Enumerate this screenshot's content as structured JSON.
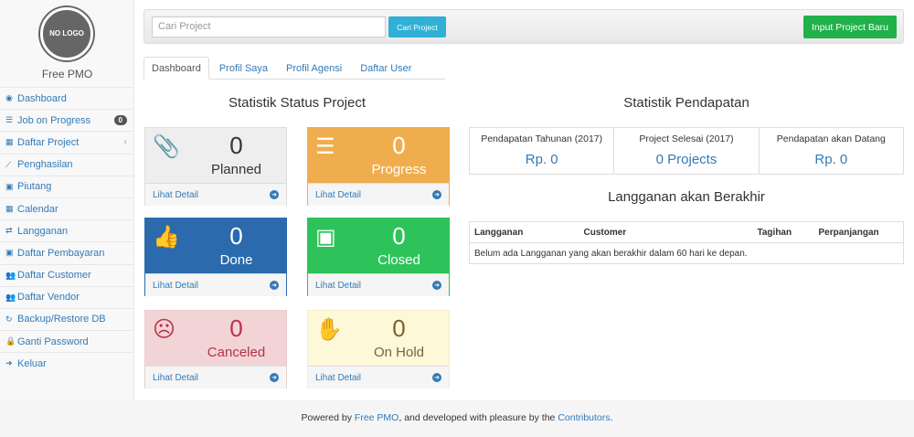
{
  "sidebar": {
    "logo": "NO LOGO",
    "brand": "Free PMO",
    "items": [
      {
        "label": "Dashboard",
        "icon": "dashboard-icon"
      },
      {
        "label": "Job on Progress",
        "icon": "tasks-icon",
        "badge": "0"
      },
      {
        "label": "Daftar Project",
        "icon": "table-icon"
      },
      {
        "label": "Penghasilan",
        "icon": "line-chart-icon"
      },
      {
        "label": "Piutang",
        "icon": "money-icon"
      },
      {
        "label": "Calendar",
        "icon": "calendar-icon"
      },
      {
        "label": "Langganan",
        "icon": "retweet-icon"
      },
      {
        "label": "Daftar Pembayaran",
        "icon": "money-icon"
      },
      {
        "label": "Daftar Customer",
        "icon": "users-icon"
      },
      {
        "label": "Daftar Vendor",
        "icon": "users-icon"
      },
      {
        "label": "Backup/Restore DB",
        "icon": "refresh-icon"
      },
      {
        "label": "Ganti Password",
        "icon": "lock-icon"
      },
      {
        "label": "Keluar",
        "icon": "sign-out-icon"
      }
    ]
  },
  "topbar": {
    "search_placeholder": "Cari Project",
    "search_button": "Cari Project",
    "new_button": "Input Project Baru"
  },
  "tabs": [
    "Dashboard",
    "Profil Saya",
    "Profil Agensi",
    "Daftar User"
  ],
  "status": {
    "title": "Statistik Status Project",
    "detail": "Lihat Detail",
    "panels": [
      {
        "count": "0",
        "label": "Planned",
        "icon": "paperclip-icon",
        "bg": "#eeeeee",
        "fg": "#333333",
        "border": "#dddddd"
      },
      {
        "count": "0",
        "label": "Progress",
        "icon": "tasks-icon",
        "bg": "#f0ad4e",
        "fg": "#ffffff",
        "border": "#f0ad4e"
      },
      {
        "count": "0",
        "label": "Done",
        "icon": "thumbs-up-icon",
        "bg": "#2a6aad",
        "fg": "#ffffff",
        "border": "#2a6aad"
      },
      {
        "count": "0",
        "label": "Closed",
        "icon": "money-icon",
        "bg": "#2ec35a",
        "fg": "#ffffff",
        "border": "#2ec35a"
      },
      {
        "count": "0",
        "label": "Canceled",
        "icon": "frown-icon",
        "bg": "#f2d4d6",
        "fg": "#b9314a",
        "border": "#ebcccc"
      },
      {
        "count": "0",
        "label": "On Hold",
        "icon": "hand-icon",
        "bg": "#fcf8d8",
        "fg": "#7a6330",
        "border": "#faebcc"
      }
    ]
  },
  "income": {
    "title": "Statistik Pendapatan",
    "stats": [
      {
        "label": "Pendapatan Tahunan (2017)",
        "value": "Rp. 0"
      },
      {
        "label": "Project Selesai (2017)",
        "value": "0 Projects"
      },
      {
        "label": "Pendapatan akan Datang",
        "value": "Rp. 0"
      }
    ]
  },
  "expiring": {
    "title": "Langganan akan Berakhir",
    "columns": [
      "Langganan",
      "Customer",
      "Tagihan",
      "Perpanjangan"
    ],
    "empty": "Belum ada Langganan yang akan berakhir dalam 60 hari ke depan."
  },
  "footer": {
    "pre": "Powered by ",
    "link1": "Free PMO",
    "mid": ", and developed with pleasure by the ",
    "link2": "Contributors",
    "post": "."
  }
}
